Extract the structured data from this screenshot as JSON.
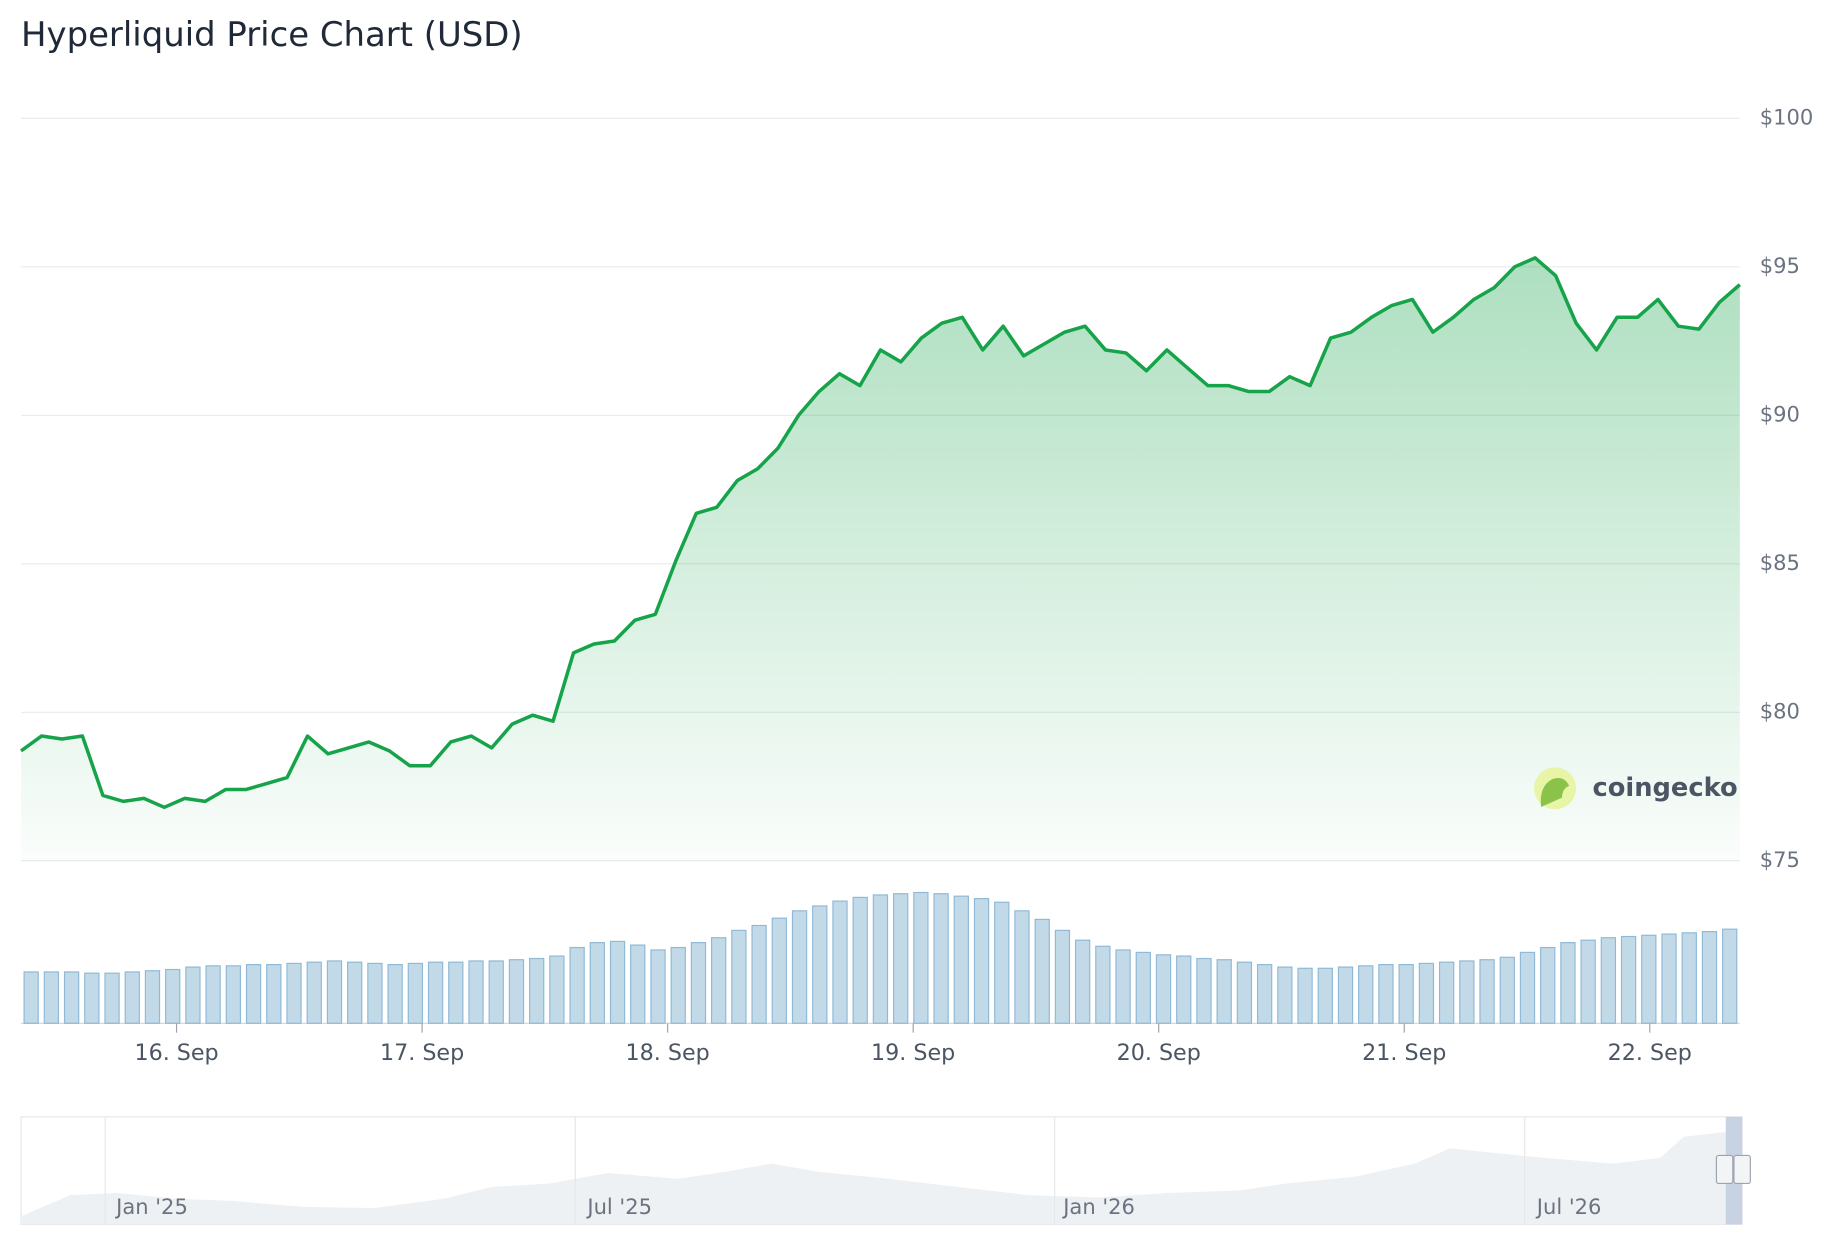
{
  "chart_data": {
    "type": "line",
    "title": "Hyperliquid Price Chart (USD)",
    "values": [
      78.7,
      79.2,
      79.1,
      79.2,
      77.2,
      77.0,
      77.1,
      76.8,
      77.1,
      77.0,
      77.4,
      77.4,
      77.6,
      77.8,
      79.2,
      78.6,
      78.8,
      79.0,
      78.7,
      78.2,
      78.2,
      79.0,
      79.2,
      78.8,
      79.6,
      79.9,
      79.7,
      82.0,
      82.3,
      82.4,
      83.1,
      83.3,
      85.1,
      86.7,
      86.9,
      87.8,
      88.2,
      88.9,
      90.0,
      90.8,
      91.4,
      91.0,
      92.2,
      91.8,
      92.6,
      93.1,
      93.3,
      92.2,
      93.0,
      92.0,
      92.4,
      92.8,
      93.0,
      92.2,
      92.1,
      91.5,
      92.2,
      91.6,
      91.0,
      91.0,
      90.8,
      90.8,
      91.3,
      91.0,
      92.6,
      92.8,
      93.3,
      93.7,
      93.9,
      92.8,
      93.3,
      93.9,
      94.3,
      95.0,
      95.3,
      94.7,
      93.1,
      92.2,
      93.3,
      93.3,
      93.9,
      93.0,
      92.9,
      93.8,
      94.4
    ],
    "volume": [
      42,
      42,
      42,
      41,
      41,
      42,
      43,
      44,
      46,
      47,
      47,
      48,
      48,
      49,
      50,
      51,
      50,
      49,
      48,
      49,
      50,
      50,
      51,
      51,
      52,
      53,
      55,
      62,
      66,
      67,
      64,
      60,
      62,
      66,
      70,
      76,
      80,
      86,
      92,
      96,
      100,
      103,
      105,
      106,
      107,
      106,
      104,
      102,
      99,
      92,
      85,
      76,
      68,
      63,
      60,
      58,
      56,
      55,
      53,
      52,
      50,
      48,
      46,
      45,
      45,
      46,
      47,
      48,
      48,
      49,
      50,
      51,
      52,
      54,
      58,
      62,
      66,
      68,
      70,
      71,
      72,
      73,
      74,
      75,
      77
    ],
    "line_color": "#16a34a",
    "volume_color": "#8fb9d6",
    "xlim": [
      0,
      84
    ],
    "ylim": [
      75,
      100
    ],
    "volume_lim": [
      0,
      110
    ],
    "yticks": [
      {
        "value": 100,
        "label": "$100"
      },
      {
        "value": 95,
        "label": "$95"
      },
      {
        "value": 90,
        "label": "$90"
      },
      {
        "value": 85,
        "label": "$85"
      },
      {
        "value": 80,
        "label": "$80"
      },
      {
        "value": 75,
        "label": "$75"
      }
    ],
    "xticks": [
      {
        "value": 7.6,
        "label": "16. Sep"
      },
      {
        "value": 19.6,
        "label": "17. Sep"
      },
      {
        "value": 31.6,
        "label": "18. Sep"
      },
      {
        "value": 43.6,
        "label": "19. Sep"
      },
      {
        "value": 55.6,
        "label": "20. Sep"
      },
      {
        "value": 67.6,
        "label": "21. Sep"
      },
      {
        "value": 79.6,
        "label": "22. Sep"
      }
    ],
    "grid": true,
    "watermark": "coingecko",
    "navigator_labels": [
      "Jan '25",
      "Jul '25",
      "Jan '26",
      "Jul '26"
    ]
  }
}
